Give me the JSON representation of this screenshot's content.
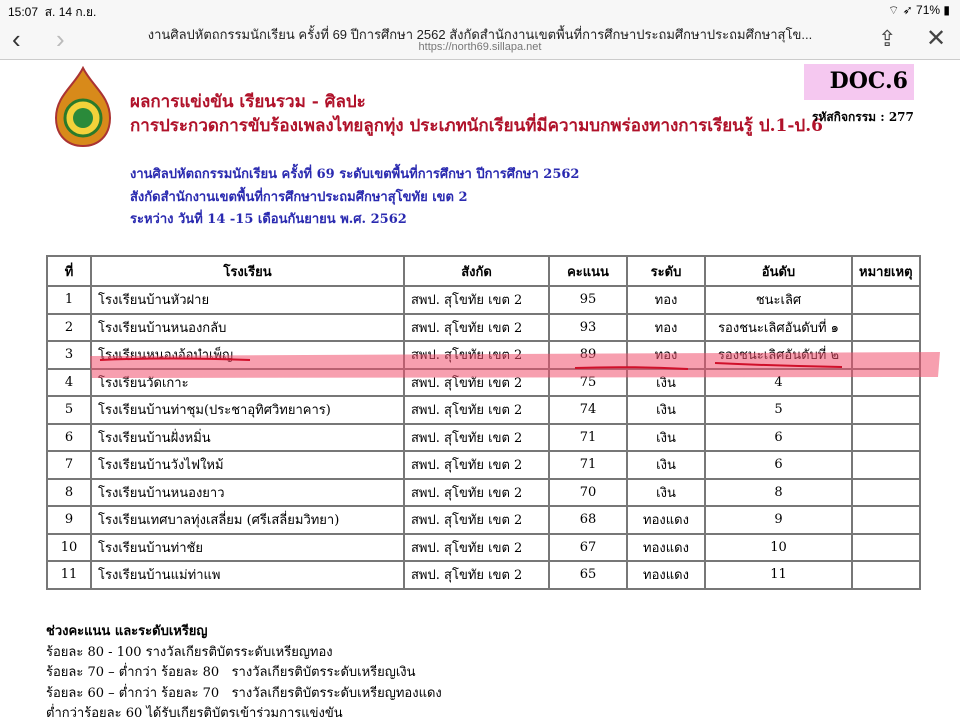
{
  "status": {
    "time": "15:07",
    "date": "ส. 14 ก.ย.",
    "battery": "71%"
  },
  "browser": {
    "title": "งานศิลปหัตถกรรมนักเรียน ครั้งที่ 69 ปีการศึกษา 2562 สังกัดสำนักงานเขตพื้นที่การศึกษาประถมศึกษาประถมศึกษาสุโข...",
    "url": "https://north69.sillapa.net",
    "back_icon": "‹",
    "forward_icon": "›",
    "share_icon": "share-icon",
    "close_icon": "✕"
  },
  "header": {
    "line1": "ผลการแข่งขัน เรียนรวม - ศิลปะ",
    "line2": "การประกวดการขับร้องเพลงไทยลูกทุ่ง ประเภทนักเรียนที่มีความบกพร่องทางการเรียนรู้ ป.1-ป.6",
    "doc": "DOC.6",
    "activity_code": "รหัสกิจกรรม : 277",
    "sub1": "งานศิลปหัตถกรรมนักเรียน ครั้งที่ 69 ระดับเขตพื้นที่การศึกษา ปีการศึกษา 2562",
    "sub2": "สังกัดสำนักงานเขตพื้นที่การศึกษาประถมศึกษาสุโขทัย เขต 2",
    "sub3": "ระหว่าง วันที่ 14 -15 เดือนกันยายน พ.ศ. 2562"
  },
  "table": {
    "headers": [
      "ที่",
      "โรงเรียน",
      "สังกัด",
      "คะแนน",
      "ระดับ",
      "อันดับ",
      "หมายเหตุ"
    ],
    "rows": [
      [
        "1",
        "โรงเรียนบ้านหัวฝาย",
        "สพป. สุโขทัย เขต 2",
        "95",
        "ทอง",
        "ชนะเลิศ",
        ""
      ],
      [
        "2",
        "โรงเรียนบ้านหนองกลับ",
        "สพป. สุโขทัย เขต 2",
        "93",
        "ทอง",
        "รองชนะเลิศอันดับที่ ๑",
        ""
      ],
      [
        "3",
        "โรงเรียนหนองอ้อบำเพ็ญ",
        "สพป. สุโขทัย เขต 2",
        "89",
        "ทอง",
        "รองชนะเลิศอันดับที่ ๒",
        ""
      ],
      [
        "4",
        "โรงเรียนวัดเกาะ",
        "สพป. สุโขทัย เขต 2",
        "75",
        "เงิน",
        "4",
        ""
      ],
      [
        "5",
        "โรงเรียนบ้านท่าชุม(ประชาอุทิศวิทยาคาร)",
        "สพป. สุโขทัย เขต 2",
        "74",
        "เงิน",
        "5",
        ""
      ],
      [
        "6",
        "โรงเรียนบ้านฝั่งหมิ่น",
        "สพป. สุโขทัย เขต 2",
        "71",
        "เงิน",
        "6",
        ""
      ],
      [
        "7",
        "โรงเรียนบ้านวังไฟใหม้",
        "สพป. สุโขทัย เขต 2",
        "71",
        "เงิน",
        "6",
        ""
      ],
      [
        "8",
        "โรงเรียนบ้านหนองยาว",
        "สพป. สุโขทัย เขต 2",
        "70",
        "เงิน",
        "8",
        ""
      ],
      [
        "9",
        "โรงเรียนเทศบาลทุ่งเสลี่ยม (ศรีเสลี่ยมวิทยา)",
        "สพป. สุโขทัย เขต 2",
        "68",
        "ทองแดง",
        "9",
        ""
      ],
      [
        "10",
        "โรงเรียนบ้านท่าชัย",
        "สพป. สุโขทัย เขต 2",
        "67",
        "ทองแดง",
        "10",
        ""
      ],
      [
        "11",
        "โรงเรียนบ้านแม่ท่าแพ",
        "สพป. สุโขทัย เขต 2",
        "65",
        "ทองแดง",
        "11",
        ""
      ]
    ]
  },
  "notes": {
    "heading": "ช่วงคะแนน และระดับเหรียญ",
    "lines": [
      "ร้อยละ 80 - 100 รางวัลเกียรติบัตรระดับเหรียญทอง",
      "ร้อยละ 70 – ต่ำกว่า ร้อยละ 80   รางวัลเกียรติบัตรระดับเหรียญเงิน",
      "ร้อยละ 60 – ต่ำกว่า ร้อยละ 70   รางวัลเกียรติบัตรระดับเหรียญทองแดง",
      "ต่ำกว่าร้อยละ 60 ได้รับเกียรติบัตรเข้าร่วมการแข่งขัน"
    ]
  },
  "colors": {
    "header_red": "#b0122a",
    "sub_blue": "#2a2ab0",
    "doc_bg": "#f5c8f0",
    "highlight": "#f0506e"
  }
}
